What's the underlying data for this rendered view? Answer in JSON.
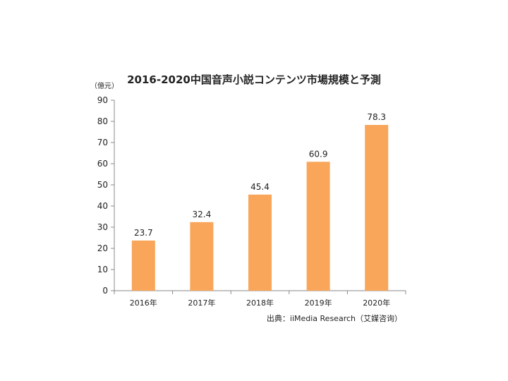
{
  "chart_data": {
    "type": "bar",
    "title": "2016-2020中国音声小説コンテンツ市場規模と予測",
    "unit_label": "（億元）",
    "source": "出典：iiMedia Research（艾媒咨询）",
    "categories": [
      "2016年",
      "2017年",
      "2018年",
      "2019年",
      "2020年"
    ],
    "values": [
      23.7,
      32.4,
      45.4,
      60.9,
      78.3
    ],
    "data_labels": [
      "23.7",
      "32.4",
      "45.4",
      "60.9",
      "78.3"
    ],
    "ylim": [
      0,
      90
    ],
    "yticks": [
      0,
      10,
      20,
      30,
      40,
      50,
      60,
      70,
      80,
      90
    ],
    "grid": false,
    "legend": "none",
    "bar_color": "#f9a65a"
  }
}
